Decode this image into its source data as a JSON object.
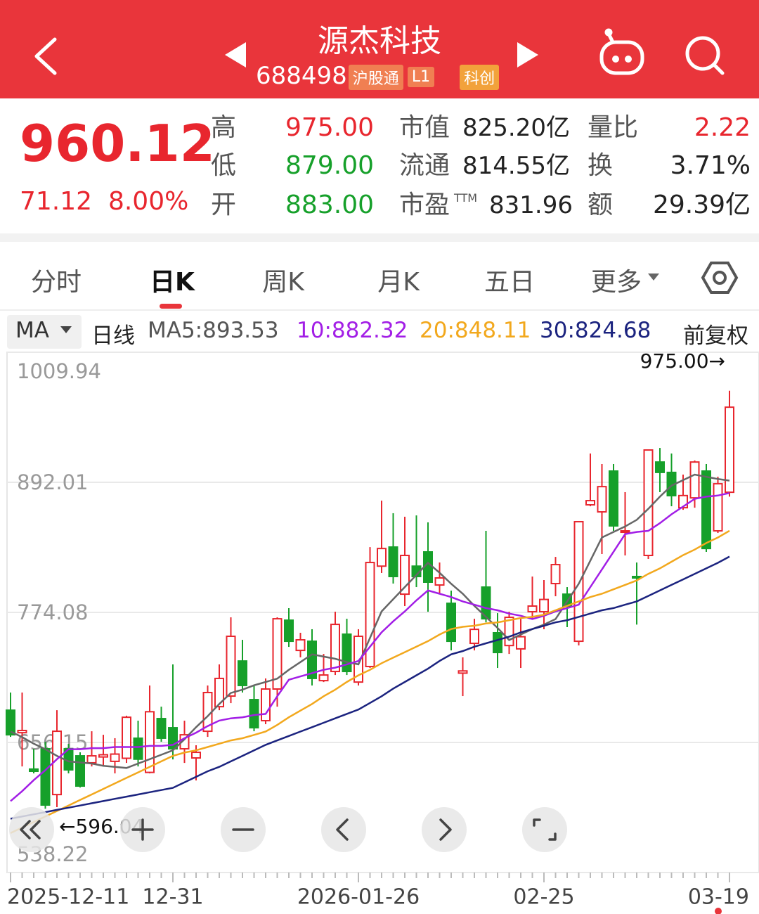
{
  "header": {
    "title": "源杰科技",
    "code": "688498",
    "badges": [
      "沪股通",
      "L1",
      "科创"
    ]
  },
  "quote": {
    "price": "960.12",
    "change": "71.12",
    "change_pct": "8.00%",
    "stats": [
      [
        {
          "label": "高",
          "value": "975.00"
        },
        {
          "label": "市值",
          "value": "825.20亿"
        },
        {
          "label": "量比",
          "value": "2.22"
        }
      ],
      [
        {
          "label": "低",
          "value": "879.00"
        },
        {
          "label": "流通",
          "value": "814.55亿"
        },
        {
          "label": "换",
          "value": "3.71%"
        }
      ],
      [
        {
          "label": "开",
          "value": "883.00"
        },
        {
          "label": "市盈",
          "sup": "TTM",
          "value": "831.96"
        },
        {
          "label": "额",
          "value": "29.39亿"
        }
      ]
    ]
  },
  "tabs": [
    "分时",
    "日K",
    "周K",
    "月K",
    "五日",
    "更多"
  ],
  "ma_bar": {
    "selector": "MA",
    "period": "日线",
    "adjust": "前复权"
  },
  "chart_data": {
    "type": "candlestick",
    "categories": [
      "2025-12-11",
      null,
      null,
      null,
      null,
      null,
      null,
      null,
      null,
      null,
      null,
      null,
      null,
      null,
      "12-31",
      null,
      null,
      null,
      null,
      null,
      null,
      null,
      null,
      null,
      null,
      null,
      null,
      null,
      null,
      null,
      "2026-01-26",
      null,
      null,
      null,
      null,
      null,
      null,
      null,
      null,
      null,
      null,
      null,
      null,
      null,
      null,
      null,
      "02-25",
      null,
      null,
      null,
      null,
      null,
      null,
      null,
      null,
      null,
      null,
      null,
      null,
      null,
      null,
      null,
      "03-19"
    ],
    "open": [
      685.4,
      665,
      632,
      650.4,
      608.9,
      650.4,
      644,
      637.7,
      643,
      639,
      641.8,
      660,
      629,
      677.8,
      669.5,
      650.4,
      642.1,
      666.3,
      688.6,
      698.2,
      730,
      695,
      675.9,
      704.6,
      767,
      739.6,
      747.9,
      712.2,
      720.5,
      754.3,
      710.9,
      725,
      816,
      833.3,
      790.6,
      816,
      828.9,
      798.9,
      782.3,
      719,
      746,
      797,
      755.6,
      744,
      741,
      774.7,
      774.7,
      800.2,
      790.6,
      747.9,
      871.6,
      865.2,
      902.2,
      847,
      806.6,
      825.7,
      910.4,
      901,
      869,
      877.9,
      902.2,
      848,
      883
    ],
    "high": [
      701.4,
      701.4,
      650.4,
      656.8,
      685.4,
      654.8,
      647.2,
      666.3,
      663.1,
      660,
      680.4,
      675.9,
      707.8,
      688.6,
      726.9,
      675.9,
      653.6,
      707.8,
      726.9,
      769.6,
      749.2,
      707.8,
      714.2,
      769.6,
      777.9,
      755.6,
      758.8,
      736.4,
      774.7,
      768.3,
      758.8,
      833.3,
      875.4,
      864,
      860.8,
      862,
      855.7,
      819.3,
      793.8,
      733.3,
      768.3,
      848,
      773.4,
      774.7,
      768.3,
      806.6,
      803.4,
      824.4,
      797,
      856.3,
      918.1,
      908.6,
      908.6,
      883.1,
      819.3,
      921.3,
      923.2,
      918.1,
      899,
      911.8,
      908.6,
      897.1,
      975
    ],
    "low": [
      661.2,
      634.4,
      628.1,
      596.04,
      597.5,
      628.1,
      615.3,
      634.4,
      634.4,
      628.1,
      637.6,
      634.4,
      628.1,
      656.8,
      640.8,
      637.6,
      621.7,
      661.2,
      685.4,
      691.8,
      701.4,
      666.3,
      672.7,
      688.6,
      742.8,
      733.3,
      707.8,
      710.9,
      717.3,
      717.3,
      707.8,
      723.7,
      809.8,
      800.2,
      779.8,
      797,
      774.7,
      790.6,
      739.6,
      698.2,
      739.6,
      765.1,
      723.7,
      736.4,
      723.7,
      768.3,
      758.8,
      788.7,
      760.7,
      744.1,
      870.3,
      827,
      848,
      825.7,
      763,
      822.5,
      883.1,
      870.3,
      867.1,
      869,
      828.9,
      846.1,
      879
    ],
    "close": [
      663.1,
      667,
      630,
      599.4,
      666.3,
      631.3,
      616.6,
      644,
      645,
      645.6,
      679,
      641,
      684,
      660,
      650.4,
      663.1,
      647.2,
      701.4,
      714.2,
      752.4,
      707.8,
      669.5,
      704.6,
      768.3,
      747.9,
      749.2,
      714.2,
      717.3,
      763.2,
      720.5,
      752.4,
      819.3,
      832,
      806.6,
      825.7,
      806.6,
      801.5,
      805.3,
      747.9,
      721,
      758.7,
      768.3,
      737.7,
      769.6,
      752,
      779.8,
      785.8,
      817.4,
      779.8,
      856.3,
      875.4,
      888.1,
      852.5,
      848,
      805.3,
      921.3,
      901,
      879.9,
      880,
      910.4,
      832,
      890.7,
      960.12
    ],
    "up_color": "#e8262e",
    "down_color": "#16a02a",
    "series": [
      {
        "name": "MA5:893.53",
        "color": "#666666",
        "values": [
          666,
          661,
          655,
          650,
          644,
          639,
          638,
          637,
          635,
          634,
          633,
          637,
          641,
          645,
          649,
          659,
          670,
          680,
          691,
          701,
          704,
          708,
          711,
          714,
          722,
          729,
          736,
          734,
          732,
          729,
          727,
          751,
          775,
          786,
          797,
          808,
          819,
          810,
          800,
          791,
          780,
          770,
          760,
          749,
          754,
          759,
          763,
          768,
          784,
          800,
          821,
          842,
          847,
          852,
          858,
          868,
          879,
          889,
          894,
          899,
          897,
          895,
          893.53
        ]
      },
      {
        "name": "10:882.32",
        "color": "#a21ee6",
        "values": [
          603,
          612,
          622,
          631,
          641,
          650,
          650,
          651,
          651,
          652,
          652,
          652,
          653,
          653,
          654,
          660,
          665,
          671,
          676,
          678,
          679,
          681,
          682,
          698,
          713,
          716,
          719,
          722,
          724,
          727,
          730,
          743,
          756,
          766,
          775,
          785,
          794,
          791,
          788,
          784,
          781,
          778,
          776,
          773,
          771,
          768,
          771,
          775,
          778,
          781,
          797,
          813,
          829,
          845,
          847,
          848,
          855,
          863,
          870,
          877,
          879,
          880,
          882.32
        ]
      },
      {
        "name": "20:848.11",
        "color": "#f2a81d",
        "values": [
          574,
          579,
          584,
          589,
          594,
          599,
          604,
          609,
          614,
          619,
          624,
          629,
          634,
          639,
          644,
          647,
          649,
          652,
          655,
          658,
          660,
          663,
          666,
          672,
          679,
          685,
          691,
          698,
          704,
          711,
          717,
          722,
          728,
          733,
          738,
          743,
          748,
          754,
          759,
          761,
          762,
          764,
          765,
          767,
          769,
          770,
          772,
          776,
          780,
          784,
          788,
          791,
          795,
          799,
          803,
          809,
          814,
          820,
          826,
          831,
          837,
          842,
          848.11
        ]
      },
      {
        "name": "30:824.68",
        "color": "#1b237f",
        "values": [
          587,
          589,
          591,
          593,
          595,
          597,
          599,
          601,
          603,
          605,
          607,
          609,
          611,
          613,
          615,
          620,
          625,
          630,
          634,
          639,
          644,
          649,
          654,
          658,
          662,
          666,
          670,
          674,
          678,
          682,
          686,
          692,
          698,
          705,
          711,
          717,
          723,
          730,
          736,
          739,
          743,
          746,
          749,
          752,
          756,
          759,
          762,
          765,
          767,
          770,
          773,
          776,
          778,
          781,
          784,
          789,
          794,
          799,
          804,
          809,
          814,
          819,
          824.68
        ]
      }
    ],
    "ylim": [
      538.22,
      1009.94
    ],
    "yticks": [
      1009.94,
      892.01,
      774.08,
      656.15,
      538.22
    ],
    "grid": true,
    "high_label": "975.00→",
    "low_label": "←596.04"
  }
}
